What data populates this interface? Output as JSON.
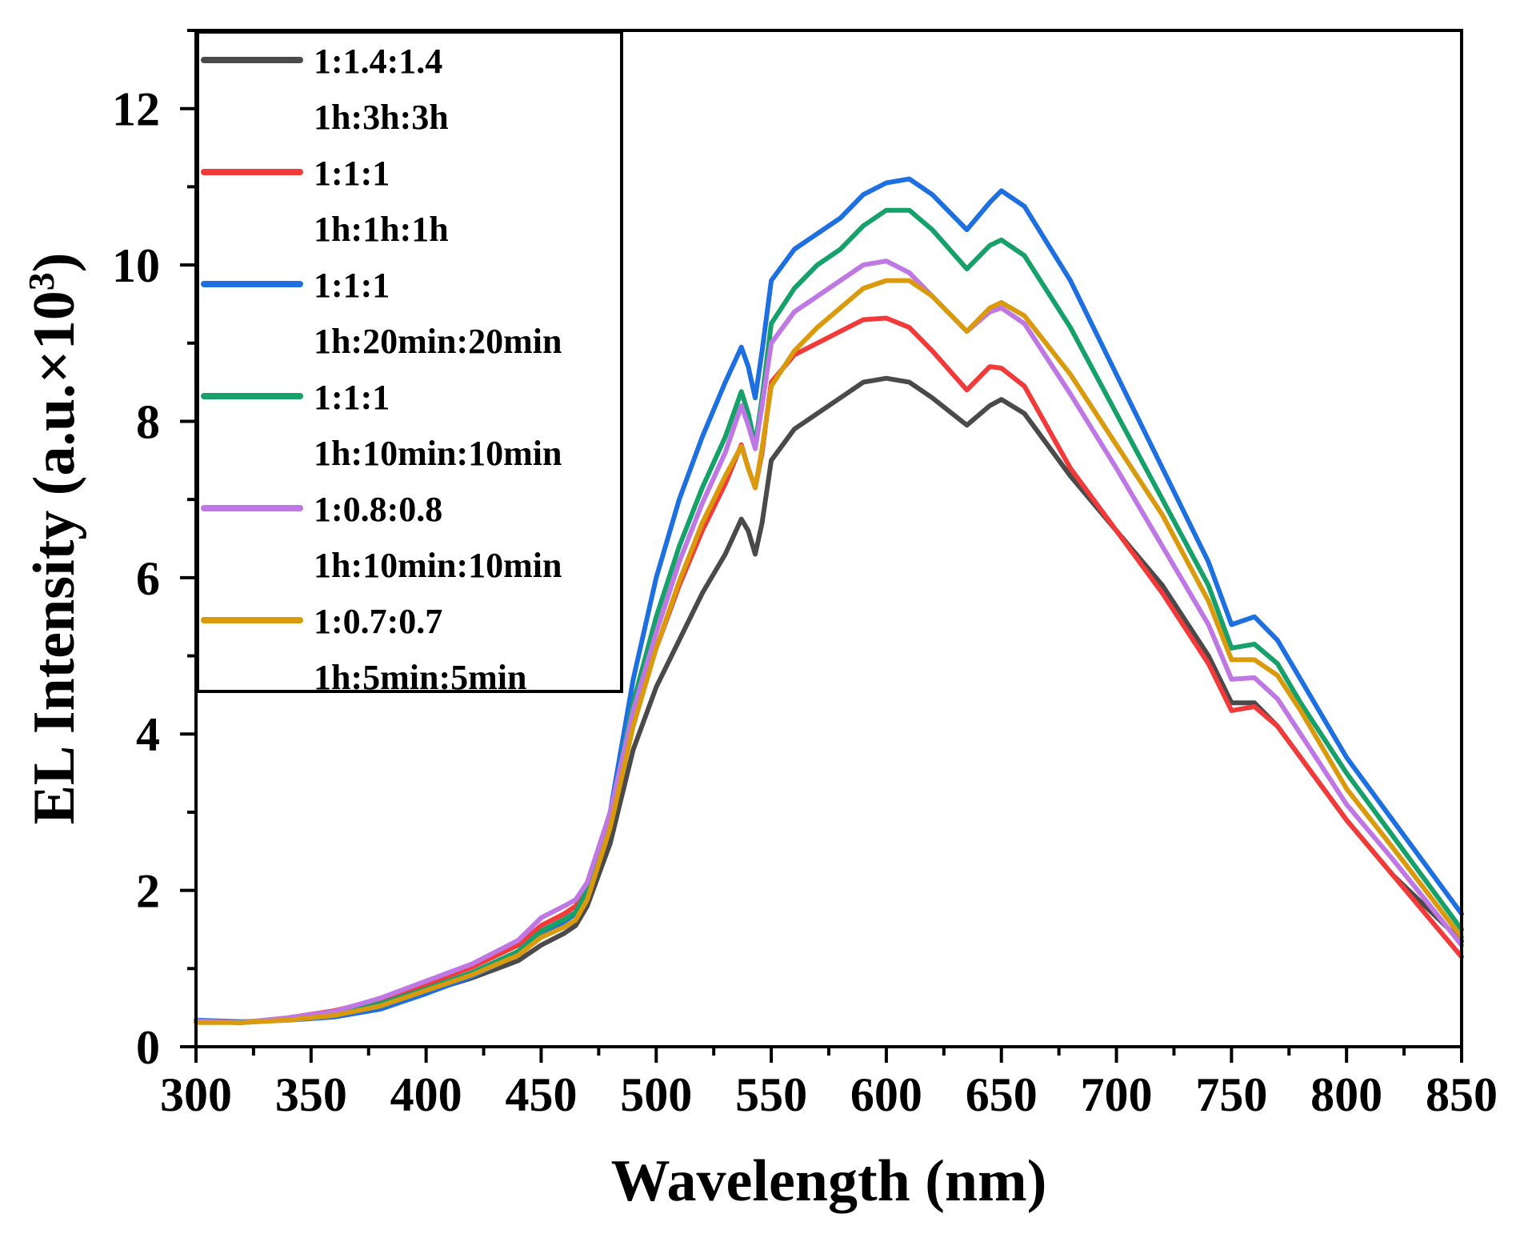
{
  "chart_data": {
    "type": "line",
    "xlabel": "Wavelength (nm)",
    "ylabel": {
      "main": "EL Intensity (a.u.×10",
      "superscript": "3",
      "close": ")"
    },
    "xlim": [
      300,
      850
    ],
    "ylim": [
      0,
      13
    ],
    "xticks": [
      {
        "value": 300,
        "label": "300"
      },
      {
        "value": 350,
        "label": "350"
      },
      {
        "value": 400,
        "label": "400"
      },
      {
        "value": 450,
        "label": "450"
      },
      {
        "value": 500,
        "label": "500"
      },
      {
        "value": 550,
        "label": "550"
      },
      {
        "value": 600,
        "label": "600"
      },
      {
        "value": 650,
        "label": "650"
      },
      {
        "value": 700,
        "label": "700"
      },
      {
        "value": 750,
        "label": "750"
      },
      {
        "value": 800,
        "label": "800"
      },
      {
        "value": 850,
        "label": "850"
      }
    ],
    "yticks": [
      {
        "value": 0,
        "label": "0"
      },
      {
        "value": 2,
        "label": "2"
      },
      {
        "value": 4,
        "label": "4"
      },
      {
        "value": 6,
        "label": "6"
      },
      {
        "value": 8,
        "label": "8"
      },
      {
        "value": 10,
        "label": "10"
      },
      {
        "value": 12,
        "label": "12"
      }
    ],
    "legend_position": "top-left",
    "x": [
      300,
      320,
      340,
      360,
      380,
      400,
      420,
      440,
      450,
      460,
      465,
      470,
      480,
      490,
      500,
      510,
      520,
      530,
      537,
      540,
      543,
      546,
      550,
      560,
      570,
      580,
      590,
      600,
      610,
      620,
      635,
      645,
      650,
      660,
      680,
      700,
      720,
      740,
      750,
      760,
      770,
      780,
      800,
      820,
      850
    ],
    "series": [
      {
        "name": "1:1.4:1.4",
        "name2": "1h:3h:3h",
        "color": "#4a4a4a",
        "values": [
          0.32,
          0.31,
          0.35,
          0.4,
          0.52,
          0.7,
          0.88,
          1.1,
          1.3,
          1.45,
          1.55,
          1.8,
          2.6,
          3.8,
          4.6,
          5.2,
          5.8,
          6.3,
          6.75,
          6.6,
          6.3,
          6.7,
          7.5,
          7.9,
          8.1,
          8.3,
          8.5,
          8.55,
          8.5,
          8.3,
          7.95,
          8.2,
          8.28,
          8.1,
          7.3,
          6.6,
          5.9,
          5.0,
          4.4,
          4.4,
          4.1,
          3.7,
          2.9,
          2.2,
          1.35
        ]
      },
      {
        "name": "1:1:1",
        "name2": "1h:1h:1h",
        "color": "#f23a3a",
        "values": [
          0.32,
          0.31,
          0.37,
          0.46,
          0.6,
          0.8,
          1.02,
          1.3,
          1.55,
          1.7,
          1.8,
          2.05,
          2.9,
          4.2,
          5.1,
          5.9,
          6.6,
          7.2,
          7.7,
          7.4,
          7.15,
          7.6,
          8.5,
          8.85,
          9.0,
          9.15,
          9.3,
          9.32,
          9.2,
          8.9,
          8.4,
          8.7,
          8.68,
          8.45,
          7.4,
          6.6,
          5.8,
          4.9,
          4.3,
          4.35,
          4.1,
          3.7,
          2.9,
          2.2,
          1.15
        ]
      },
      {
        "name": "1:1:1",
        "name2": "1h:20min:20min",
        "color": "#1e6fe0",
        "values": [
          0.34,
          0.32,
          0.34,
          0.38,
          0.48,
          0.68,
          0.9,
          1.18,
          1.42,
          1.6,
          1.7,
          2.0,
          3.0,
          4.7,
          6.0,
          7.0,
          7.8,
          8.5,
          8.95,
          8.7,
          8.3,
          8.9,
          9.8,
          10.2,
          10.4,
          10.6,
          10.9,
          11.05,
          11.1,
          10.9,
          10.45,
          10.8,
          10.95,
          10.75,
          9.8,
          8.6,
          7.4,
          6.2,
          5.4,
          5.5,
          5.2,
          4.7,
          3.7,
          2.9,
          1.7
        ]
      },
      {
        "name": "1:1:1",
        "name2": "1h:10min:10min",
        "color": "#16a06a",
        "values": [
          0.32,
          0.31,
          0.35,
          0.42,
          0.55,
          0.74,
          0.95,
          1.22,
          1.48,
          1.63,
          1.72,
          2.0,
          2.95,
          4.4,
          5.5,
          6.4,
          7.15,
          7.8,
          8.38,
          8.1,
          7.7,
          8.3,
          9.25,
          9.7,
          10.0,
          10.2,
          10.5,
          10.7,
          10.7,
          10.45,
          9.95,
          10.25,
          10.32,
          10.12,
          9.2,
          8.1,
          7.0,
          5.9,
          5.1,
          5.15,
          4.9,
          4.4,
          3.5,
          2.7,
          1.5
        ]
      },
      {
        "name": "1:0.8:0.8",
        "name2": "1h:10min:10min",
        "color": "#bf77e3",
        "values": [
          0.33,
          0.31,
          0.37,
          0.45,
          0.62,
          0.84,
          1.06,
          1.36,
          1.65,
          1.8,
          1.88,
          2.1,
          3.0,
          4.3,
          5.3,
          6.2,
          6.95,
          7.6,
          8.2,
          7.95,
          7.65,
          8.2,
          9.0,
          9.4,
          9.6,
          9.8,
          10.0,
          10.05,
          9.9,
          9.6,
          9.15,
          9.4,
          9.45,
          9.25,
          8.35,
          7.4,
          6.4,
          5.4,
          4.7,
          4.72,
          4.45,
          4.0,
          3.1,
          2.4,
          1.3
        ]
      },
      {
        "name": "1:0.7:0.7",
        "name2": "1h:5min:5min",
        "color": "#d99a0e",
        "values": [
          0.31,
          0.31,
          0.34,
          0.4,
          0.52,
          0.72,
          0.92,
          1.17,
          1.4,
          1.53,
          1.62,
          1.88,
          2.8,
          4.1,
          5.1,
          5.95,
          6.7,
          7.3,
          7.68,
          7.4,
          7.15,
          7.65,
          8.45,
          8.9,
          9.2,
          9.45,
          9.7,
          9.8,
          9.8,
          9.6,
          9.15,
          9.45,
          9.52,
          9.35,
          8.6,
          7.7,
          6.8,
          5.7,
          4.95,
          4.95,
          4.75,
          4.3,
          3.3,
          2.55,
          1.4
        ]
      }
    ]
  }
}
